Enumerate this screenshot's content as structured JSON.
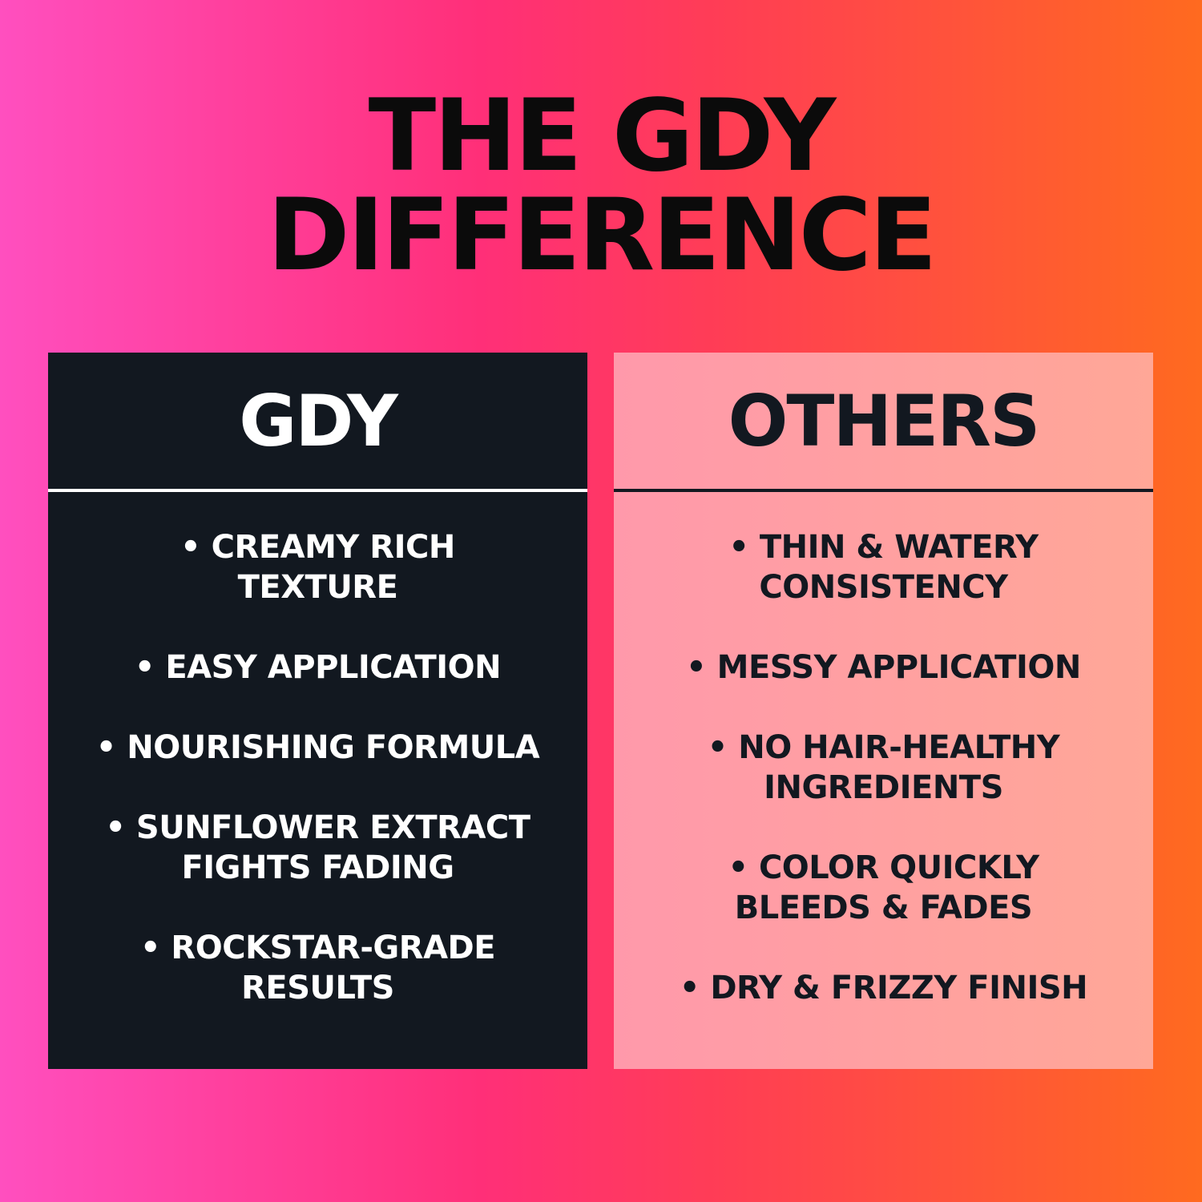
{
  "title": {
    "line1": "THE GDY",
    "line2": "DIFFERENCE"
  },
  "colors": {
    "gdy_panel": "#121820",
    "others_panel": "#ff9fa4",
    "background_start": "#ff4fbf",
    "background_end": "#ff6a1f"
  },
  "gdy": {
    "heading": "GDY",
    "items": [
      "• CREAMY RICH\nTEXTURE",
      "• EASY APPLICATION",
      "• NOURISHING FORMULA",
      "• SUNFLOWER EXTRACT\nFIGHTS FADING",
      "• ROCKSTAR-GRADE\nRESULTS"
    ]
  },
  "others": {
    "heading": "OTHERS",
    "items": [
      "• THIN & WATERY\nCONSISTENCY",
      "• MESSY APPLICATION",
      "• NO HAIR-HEALTHY\nINGREDIENTS",
      "• COLOR QUICKLY\nBLEEDS & FADES",
      "• DRY & FRIZZY FINISH"
    ]
  }
}
